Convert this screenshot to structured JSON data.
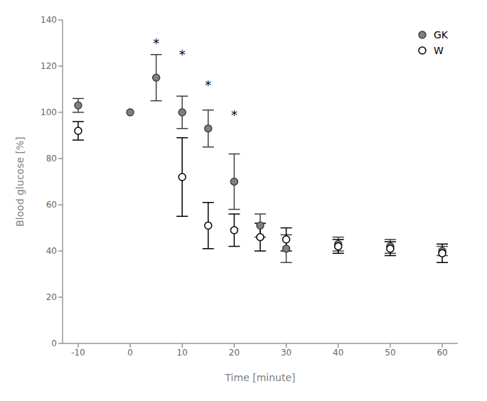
{
  "chart_data": {
    "type": "scatter",
    "xlabel": "Time [minute]",
    "ylabel": "Blood glucose [%]",
    "xlim": [
      -13,
      63
    ],
    "ylim": [
      0,
      140
    ],
    "xticks": [
      -10,
      0,
      10,
      20,
      30,
      40,
      50,
      60
    ],
    "yticks": [
      0,
      20,
      40,
      60,
      80,
      100,
      120,
      140
    ],
    "grid": false,
    "legend": "upper right",
    "series": [
      {
        "name": "GK",
        "color": "#808080",
        "marker": "circle",
        "x": [
          -10,
          0,
          5,
          10,
          15,
          20,
          25,
          30,
          40,
          50,
          60
        ],
        "values": [
          103,
          100,
          115,
          100,
          93,
          70,
          51,
          41,
          43,
          42,
          40
        ],
        "yerr": [
          3,
          0,
          10,
          7,
          8,
          12,
          5,
          6,
          3,
          3,
          2
        ]
      },
      {
        "name": "W",
        "color": "#000000",
        "marker": "open",
        "x": [
          -10,
          10,
          15,
          20,
          25,
          30,
          40,
          50,
          60
        ],
        "values": [
          92,
          72,
          51,
          49,
          46,
          45,
          42,
          41,
          39
        ],
        "yerr": [
          4,
          17,
          10,
          7,
          6,
          5,
          3,
          3,
          4
        ]
      }
    ],
    "annotations": [
      {
        "x": 5,
        "y": 128,
        "text": "*"
      },
      {
        "x": 10,
        "y": 123,
        "text": "*"
      },
      {
        "x": 15,
        "y": 110,
        "text": "*"
      },
      {
        "x": 20,
        "y": 97,
        "text": "*"
      }
    ]
  }
}
